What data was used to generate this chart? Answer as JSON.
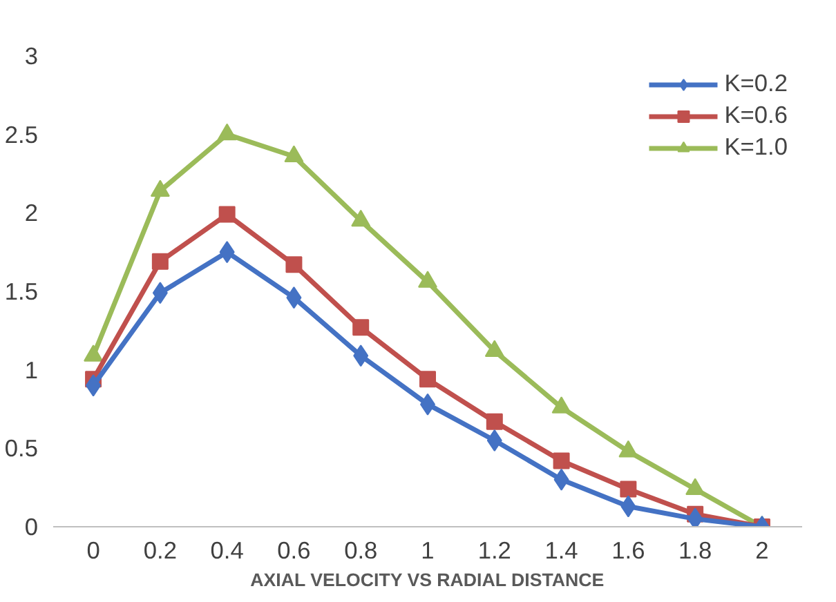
{
  "chart_data": {
    "type": "line",
    "xlabel": "AXIAL VELOCITY VS RADIAL DISTANCE",
    "categories": [
      "0",
      "0.2",
      "0.4",
      "0.6",
      "0.8",
      "1",
      "1.2",
      "1.4",
      "1.6",
      "1.8",
      "2"
    ],
    "ylim": [
      0,
      3
    ],
    "yticks": [
      0,
      0.5,
      1,
      1.5,
      2,
      2.5,
      3
    ],
    "grid": false,
    "legend": "top right",
    "line_style": "solid",
    "series": [
      {
        "name": "K=0.2",
        "color": "#4472c4",
        "marker": "diamond",
        "values": [
          0.9,
          1.49,
          1.75,
          1.46,
          1.09,
          0.78,
          0.55,
          0.3,
          0.13,
          0.05,
          0
        ]
      },
      {
        "name": "K=0.6",
        "color": "#c0504d",
        "marker": "square",
        "values": [
          0.94,
          1.69,
          1.99,
          1.67,
          1.27,
          0.94,
          0.67,
          0.42,
          0.24,
          0.08,
          0
        ]
      },
      {
        "name": "K=1.0",
        "color": "#9bbb59",
        "marker": "triangle",
        "values": [
          1.09,
          2.14,
          2.5,
          2.36,
          1.95,
          1.56,
          1.12,
          0.76,
          0.48,
          0.24,
          0
        ]
      }
    ]
  }
}
